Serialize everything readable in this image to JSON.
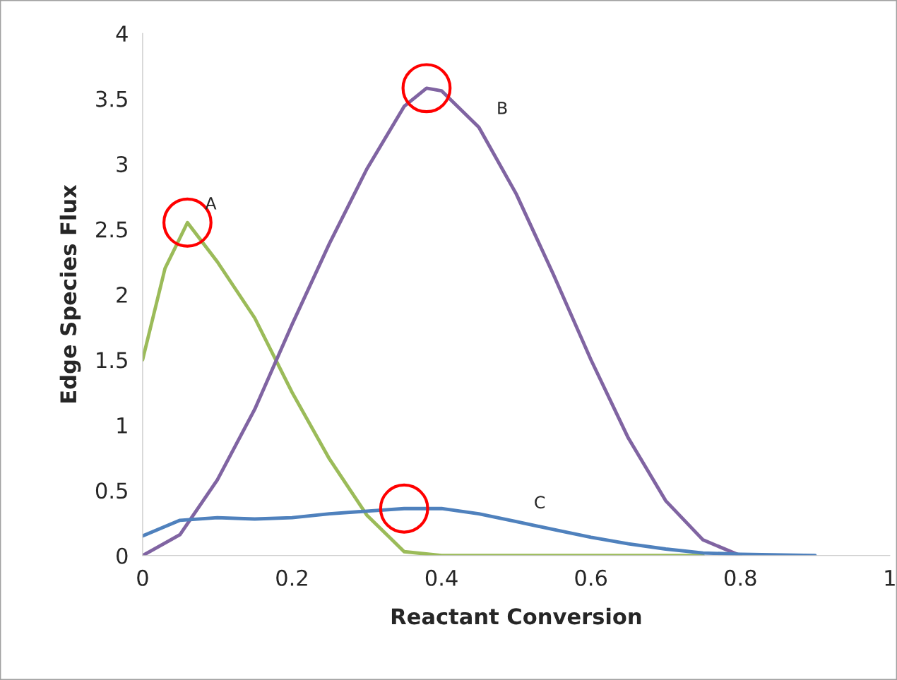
{
  "chart_data": {
    "type": "line",
    "xlabel": "Reactant Conversion",
    "ylabel": "Edge Species Flux",
    "xlim": [
      0,
      1
    ],
    "xticks": [
      0,
      0.2,
      0.4,
      0.6,
      0.8,
      1
    ],
    "ylim": [
      0,
      4
    ],
    "yticks": [
      0,
      0.5,
      1,
      1.5,
      2,
      2.5,
      3,
      3.5,
      4
    ],
    "grid": false,
    "legend": false,
    "marker": "none",
    "line_style": "solid",
    "series": [
      {
        "color": "#9bbb59",
        "x": [
          0,
          0.03,
          0.06,
          0.1,
          0.15,
          0.2,
          0.25,
          0.3,
          0.35,
          0.4,
          0.5,
          0.6,
          0.75
        ],
        "values": [
          1.5,
          2.2,
          2.55,
          2.25,
          1.82,
          1.25,
          0.74,
          0.31,
          0.03,
          0,
          0,
          0,
          0
        ]
      },
      {
        "color": "#8064a2",
        "x": [
          0,
          0.05,
          0.1,
          0.15,
          0.2,
          0.25,
          0.3,
          0.35,
          0.38,
          0.4,
          0.45,
          0.5,
          0.55,
          0.6,
          0.65,
          0.7,
          0.75,
          0.8
        ],
        "values": [
          0,
          0.16,
          0.58,
          1.12,
          1.77,
          2.39,
          2.96,
          3.44,
          3.58,
          3.56,
          3.28,
          2.77,
          2.15,
          1.5,
          0.9,
          0.42,
          0.12,
          0
        ]
      },
      {
        "color": "#4f81bd",
        "x": [
          0,
          0.05,
          0.1,
          0.15,
          0.2,
          0.25,
          0.3,
          0.35,
          0.4,
          0.45,
          0.5,
          0.55,
          0.6,
          0.65,
          0.7,
          0.75,
          0.8,
          0.9
        ],
        "values": [
          0.15,
          0.27,
          0.29,
          0.28,
          0.29,
          0.32,
          0.34,
          0.36,
          0.36,
          0.32,
          0.26,
          0.2,
          0.14,
          0.09,
          0.05,
          0.02,
          0.01,
          0
        ]
      }
    ],
    "annotations": [
      {
        "text": "A",
        "x": 0.06,
        "y": 2.55
      },
      {
        "text": "B",
        "x": 0.45,
        "y": 3.28
      },
      {
        "text": "C",
        "x": 0.5,
        "y": 0.26
      }
    ]
  }
}
